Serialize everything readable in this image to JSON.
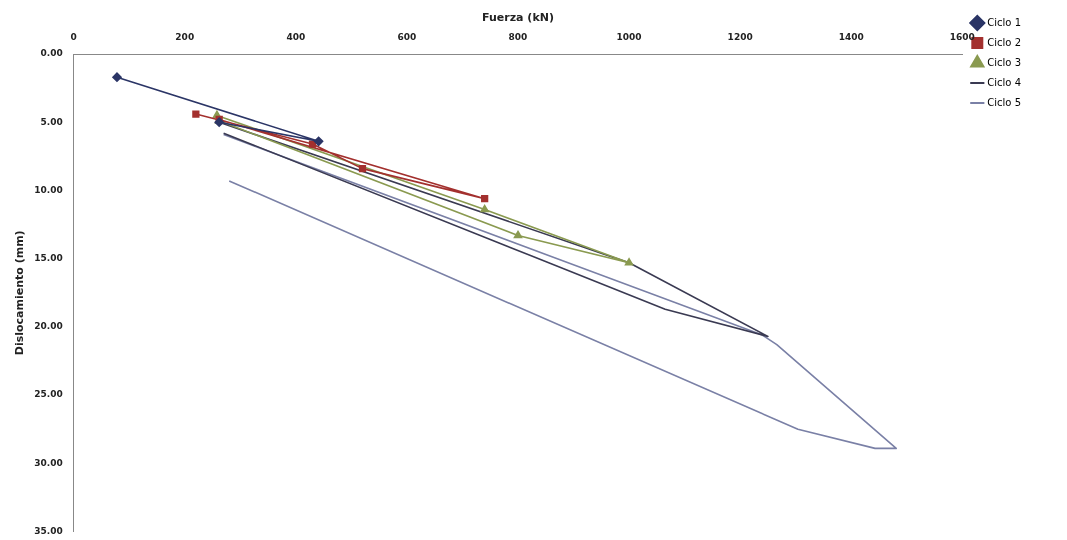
{
  "chart_data": {
    "type": "line",
    "xlabel": "Fuerza (kN)",
    "ylabel": "Dislocamiento (mm)",
    "xlim": [
      0,
      1600
    ],
    "xticks": [
      0,
      200,
      400,
      600,
      800,
      1000,
      1200,
      1400,
      1600
    ],
    "ylim": [
      35,
      0
    ],
    "yticks": [
      {
        "value": 0,
        "label": "0.00"
      },
      {
        "value": 5,
        "label": "5.00"
      },
      {
        "value": 10,
        "label": "10.00"
      },
      {
        "value": 15,
        "label": "15.00"
      },
      {
        "value": 20,
        "label": "20.00"
      },
      {
        "value": 25,
        "label": "25.00"
      },
      {
        "value": 30,
        "label": "30.00"
      },
      {
        "value": 35,
        "label": "35.00"
      }
    ],
    "grid": false,
    "legend": "top right",
    "series": [
      {
        "name": "Ciclo 1",
        "color": "#2b3566",
        "marker": "diamond",
        "x": [
          78,
          441,
          262
        ],
        "values": [
          1.7,
          6.4,
          5.0
        ]
      },
      {
        "name": "Ciclo 2",
        "color": "#a3302e",
        "marker": "square",
        "x": [
          220,
          430,
          520,
          740,
          262
        ],
        "values": [
          4.4,
          6.6,
          8.4,
          10.6,
          4.8
        ]
      },
      {
        "name": "Ciclo 3",
        "color": "#8a9a50",
        "marker": "triangle",
        "x": [
          258,
          740,
          1000,
          800,
          262
        ],
        "values": [
          4.5,
          11.4,
          15.3,
          13.3,
          4.9
        ]
      },
      {
        "name": "Ciclo 4",
        "color": "#3a3a52",
        "marker": "none",
        "x": [
          262,
          1000,
          1250,
          1065,
          270
        ],
        "values": [
          5.0,
          15.3,
          20.7,
          18.7,
          5.8
        ]
      },
      {
        "name": "Ciclo 5",
        "color": "#7a80a6",
        "marker": "none",
        "x": [
          270,
          1240,
          1266,
          1481,
          1443,
          1304,
          280
        ],
        "values": [
          5.9,
          20.6,
          21.3,
          28.9,
          28.9,
          27.5,
          9.3
        ]
      }
    ]
  }
}
